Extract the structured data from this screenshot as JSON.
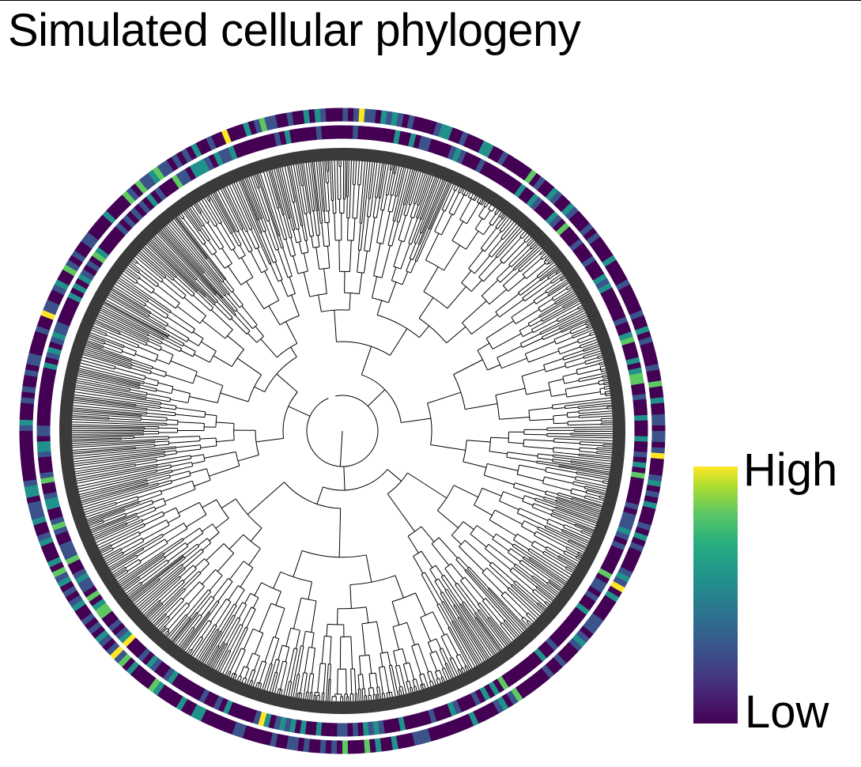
{
  "title": "Simulated cellular phylogeny",
  "legend": {
    "high_label": "High",
    "low_label": "Low",
    "colormap": "viridis",
    "colors": [
      "#440154",
      "#3b528b",
      "#21918c",
      "#5ec962",
      "#fde725"
    ]
  },
  "tree": {
    "layout": "circular",
    "branch_color": "#000000",
    "leaf_band_color": "#3a3a3a",
    "ring_count": 2
  }
}
